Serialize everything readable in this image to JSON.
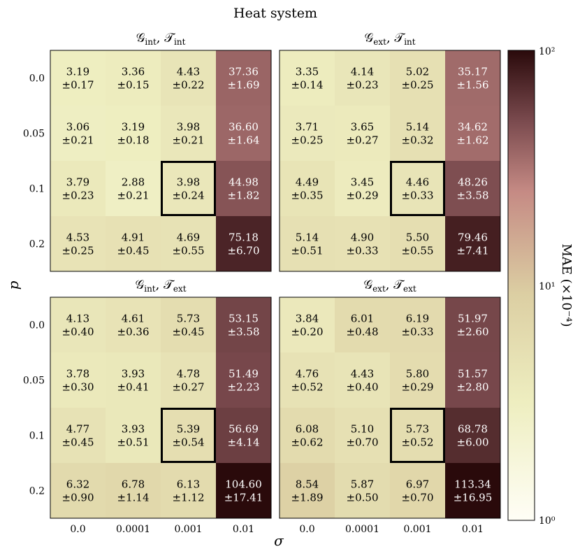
{
  "chart_data": {
    "type": "heatmap",
    "title": "Heat system",
    "xlabel": "σ",
    "ylabel": "p",
    "x_categories": [
      "0.0",
      "0.0001",
      "0.001",
      "0.01"
    ],
    "y_categories": [
      "0.0",
      "0.05",
      "0.1",
      "0.2"
    ],
    "colorbar": {
      "label": "MAE (×10⁻⁴)",
      "scale": "log",
      "range": [
        1,
        100
      ],
      "tick_labels": [
        "10⁰",
        "10¹",
        "10²"
      ],
      "colors": [
        "#fffef6",
        "#eeeec0",
        "#dccfa3",
        "#c58a84",
        "#7a4a4e",
        "#2a0a0b"
      ]
    },
    "highlight": {
      "x": "0.001",
      "y": "0.1"
    },
    "panels": [
      {
        "title_main_1": "𝒢",
        "title_sub_1": "int",
        "title_main_2": "𝒯",
        "title_sub_2": "int",
        "values": [
          [
            3.19,
            3.36,
            4.43,
            37.36
          ],
          [
            3.06,
            3.19,
            3.98,
            36.6
          ],
          [
            3.79,
            2.88,
            3.98,
            44.98
          ],
          [
            4.53,
            4.91,
            4.69,
            75.18
          ]
        ],
        "errors": [
          [
            0.17,
            0.15,
            0.22,
            1.69
          ],
          [
            0.21,
            0.18,
            0.21,
            1.64
          ],
          [
            0.23,
            0.21,
            0.24,
            1.82
          ],
          [
            0.25,
            0.45,
            0.55,
            6.7
          ]
        ]
      },
      {
        "title_main_1": "𝒢",
        "title_sub_1": "ext",
        "title_main_2": "𝒯",
        "title_sub_2": "int",
        "values": [
          [
            3.35,
            4.14,
            5.02,
            35.17
          ],
          [
            3.71,
            3.65,
            5.14,
            34.62
          ],
          [
            4.49,
            3.45,
            4.46,
            48.26
          ],
          [
            5.14,
            4.9,
            5.5,
            79.46
          ]
        ],
        "errors": [
          [
            0.14,
            0.23,
            0.25,
            1.56
          ],
          [
            0.25,
            0.27,
            0.32,
            1.62
          ],
          [
            0.35,
            0.29,
            0.33,
            3.58
          ],
          [
            0.51,
            0.33,
            0.55,
            7.41
          ]
        ]
      },
      {
        "title_main_1": "𝒢",
        "title_sub_1": "int",
        "title_main_2": "𝒯",
        "title_sub_2": "ext",
        "values": [
          [
            4.13,
            4.61,
            5.73,
            53.15
          ],
          [
            3.78,
            3.93,
            4.78,
            51.49
          ],
          [
            4.77,
            3.93,
            5.39,
            56.69
          ],
          [
            6.32,
            6.78,
            6.13,
            104.6
          ]
        ],
        "errors": [
          [
            0.4,
            0.36,
            0.45,
            3.58
          ],
          [
            0.3,
            0.41,
            0.27,
            2.23
          ],
          [
            0.45,
            0.51,
            0.54,
            4.14
          ],
          [
            0.9,
            1.14,
            1.12,
            17.41
          ]
        ]
      },
      {
        "title_main_1": "𝒢",
        "title_sub_1": "ext",
        "title_main_2": "𝒯",
        "title_sub_2": "ext",
        "values": [
          [
            3.84,
            6.01,
            6.19,
            51.97
          ],
          [
            4.76,
            4.43,
            5.8,
            51.57
          ],
          [
            6.08,
            5.1,
            5.73,
            68.78
          ],
          [
            8.54,
            5.87,
            6.97,
            113.34
          ]
        ],
        "errors": [
          [
            0.2,
            0.48,
            0.33,
            2.6
          ],
          [
            0.52,
            0.4,
            0.29,
            2.8
          ],
          [
            0.62,
            0.7,
            0.52,
            6.0
          ],
          [
            1.89,
            0.5,
            0.7,
            16.95
          ]
        ]
      }
    ]
  }
}
